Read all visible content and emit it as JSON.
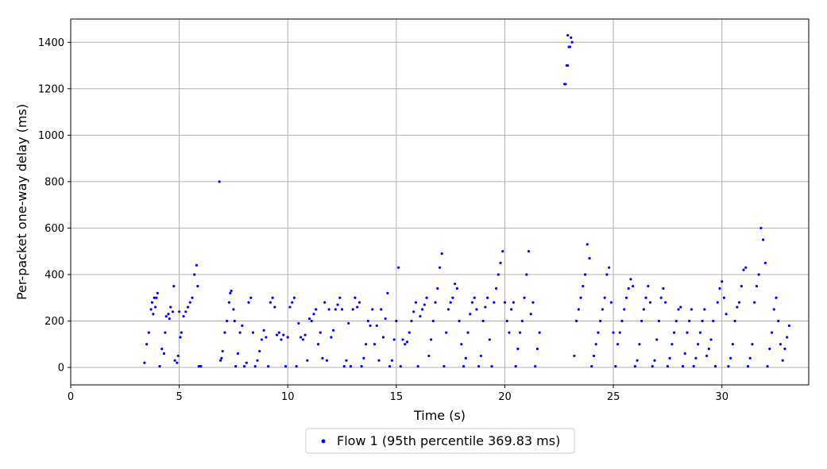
{
  "chart_data": {
    "type": "scatter",
    "xlabel": "Time (s)",
    "ylabel": "Per-packet one-way delay (ms)",
    "xlim": [
      0,
      34
    ],
    "ylim": [
      -75,
      1500
    ],
    "xticks": [
      0,
      5,
      10,
      15,
      20,
      25,
      30
    ],
    "yticks": [
      0,
      200,
      400,
      600,
      800,
      1000,
      1200,
      1400
    ],
    "grid": true,
    "legend_position": "bottom-center",
    "series": [
      {
        "name": "Flow 1 (95th percentile 369.83 ms)",
        "color": "#0000ff",
        "x": [
          3.4,
          3.5,
          3.6,
          3.7,
          3.75,
          3.8,
          3.85,
          3.9,
          3.95,
          4.0,
          4.1,
          4.2,
          4.3,
          4.35,
          4.4,
          4.5,
          4.55,
          4.6,
          4.7,
          4.75,
          4.8,
          4.9,
          4.95,
          5.0,
          5.05,
          5.1,
          5.2,
          5.3,
          5.4,
          5.5,
          5.6,
          5.7,
          5.8,
          5.85,
          5.9,
          5.95,
          6.0,
          6.9,
          6.95,
          7.0,
          7.1,
          7.2,
          7.3,
          7.35,
          7.4,
          7.5,
          7.55,
          7.6,
          7.7,
          7.8,
          7.9,
          8.0,
          8.1,
          8.2,
          8.3,
          8.4,
          8.5,
          8.6,
          8.7,
          8.8,
          8.9,
          9.0,
          9.1,
          9.2,
          9.3,
          9.4,
          9.5,
          9.6,
          9.7,
          9.8,
          9.9,
          10.0,
          10.1,
          10.2,
          10.3,
          10.4,
          10.5,
          10.6,
          10.7,
          10.8,
          10.9,
          11.0,
          11.1,
          11.2,
          11.3,
          11.4,
          11.5,
          11.6,
          11.7,
          11.8,
          11.9,
          12.0,
          12.1,
          12.2,
          12.3,
          12.4,
          12.5,
          12.6,
          12.7,
          12.8,
          12.9,
          13.0,
          13.1,
          13.2,
          13.3,
          13.4,
          13.5,
          13.6,
          13.7,
          13.8,
          13.9,
          14.0,
          14.1,
          14.2,
          14.3,
          14.4,
          14.5,
          14.6,
          14.7,
          14.8,
          14.9,
          15.0,
          15.1,
          15.2,
          15.3,
          15.4,
          15.5,
          15.6,
          15.7,
          15.8,
          15.9,
          16.0,
          16.1,
          16.2,
          16.3,
          16.4,
          16.5,
          16.6,
          16.7,
          16.8,
          16.9,
          17.0,
          17.1,
          17.2,
          17.3,
          17.4,
          17.5,
          17.6,
          17.7,
          17.8,
          17.9,
          18.0,
          18.1,
          18.2,
          18.3,
          18.4,
          18.5,
          18.6,
          18.7,
          18.8,
          18.9,
          19.0,
          19.1,
          19.2,
          19.3,
          19.4,
          19.5,
          19.6,
          19.7,
          19.8,
          19.9,
          20.0,
          20.1,
          20.2,
          20.3,
          20.4,
          20.5,
          20.6,
          20.7,
          20.8,
          20.9,
          21.0,
          21.1,
          21.2,
          21.3,
          21.4,
          21.5,
          21.6,
          22.8,
          22.9,
          23.0,
          23.05,
          23.1,
          23.2,
          23.3,
          23.4,
          23.5,
          23.6,
          23.7,
          23.8,
          23.9,
          24.0,
          24.1,
          24.2,
          24.3,
          24.4,
          24.5,
          24.6,
          24.7,
          24.8,
          24.9,
          25.0,
          25.1,
          25.2,
          25.3,
          25.4,
          25.5,
          25.6,
          25.7,
          25.8,
          25.9,
          26.0,
          26.1,
          26.2,
          26.3,
          26.4,
          26.5,
          26.6,
          26.7,
          26.8,
          26.9,
          27.0,
          27.1,
          27.2,
          27.3,
          27.4,
          27.5,
          27.6,
          27.7,
          27.8,
          27.9,
          28.0,
          28.1,
          28.2,
          28.3,
          28.4,
          28.5,
          28.6,
          28.7,
          28.8,
          28.9,
          29.0,
          29.1,
          29.2,
          29.3,
          29.4,
          29.5,
          29.6,
          29.7,
          29.8,
          29.9,
          30.0,
          30.1,
          30.2,
          30.3,
          30.4,
          30.5,
          30.6,
          30.7,
          30.8,
          30.9,
          31.0,
          31.1,
          31.2,
          31.3,
          31.4,
          31.5,
          31.6,
          31.7,
          31.8,
          31.9,
          32.0,
          32.1,
          32.2,
          32.3,
          32.4,
          32.5,
          32.6,
          32.7,
          32.8,
          32.9,
          33.0,
          33.1,
          6.85,
          22.75,
          22.85,
          22.9,
          22.95
        ],
        "y": [
          20,
          100,
          150,
          250,
          280,
          230,
          300,
          260,
          300,
          320,
          5,
          80,
          60,
          150,
          220,
          230,
          210,
          260,
          240,
          350,
          30,
          20,
          50,
          240,
          130,
          150,
          220,
          240,
          260,
          280,
          300,
          400,
          440,
          350,
          5,
          5,
          5,
          30,
          40,
          70,
          150,
          200,
          280,
          320,
          330,
          250,
          200,
          5,
          60,
          150,
          180,
          5,
          20,
          280,
          300,
          150,
          5,
          30,
          70,
          120,
          160,
          130,
          5,
          280,
          300,
          260,
          140,
          150,
          120,
          140,
          5,
          130,
          260,
          280,
          300,
          5,
          190,
          130,
          120,
          140,
          30,
          210,
          200,
          230,
          250,
          100,
          150,
          40,
          280,
          30,
          250,
          130,
          160,
          250,
          270,
          300,
          250,
          5,
          30,
          190,
          5,
          250,
          300,
          260,
          280,
          5,
          40,
          100,
          200,
          180,
          250,
          100,
          180,
          30,
          250,
          130,
          210,
          320,
          5,
          30,
          120,
          200,
          430,
          5,
          120,
          100,
          110,
          150,
          200,
          240,
          280,
          5,
          220,
          250,
          270,
          300,
          50,
          120,
          200,
          280,
          340,
          430,
          490,
          5,
          150,
          250,
          280,
          300,
          360,
          340,
          200,
          100,
          5,
          40,
          150,
          230,
          280,
          300,
          250,
          5,
          50,
          200,
          260,
          300,
          120,
          5,
          280,
          340,
          400,
          450,
          500,
          280,
          200,
          150,
          250,
          280,
          5,
          80,
          150,
          200,
          300,
          400,
          500,
          230,
          280,
          5,
          80,
          150,
          1220,
          1300,
          1380,
          1420,
          1400,
          50,
          200,
          250,
          300,
          350,
          400,
          530,
          470,
          5,
          50,
          100,
          150,
          200,
          250,
          300,
          400,
          430,
          280,
          150,
          5,
          100,
          150,
          200,
          250,
          300,
          340,
          380,
          350,
          5,
          30,
          100,
          200,
          250,
          300,
          350,
          280,
          5,
          30,
          120,
          200,
          300,
          340,
          280,
          5,
          40,
          100,
          150,
          200,
          250,
          260,
          5,
          60,
          150,
          200,
          250,
          5,
          40,
          100,
          150,
          200,
          250,
          50,
          80,
          120,
          200,
          5,
          280,
          340,
          370,
          300,
          230,
          5,
          40,
          100,
          200,
          260,
          280,
          350,
          420,
          430,
          5,
          40,
          100,
          280,
          350,
          400,
          600,
          550,
          450,
          5,
          80,
          150,
          250,
          300,
          200,
          100,
          30,
          80,
          130,
          180,
          800,
          1220,
          1300,
          1430,
          1380
        ]
      }
    ]
  }
}
